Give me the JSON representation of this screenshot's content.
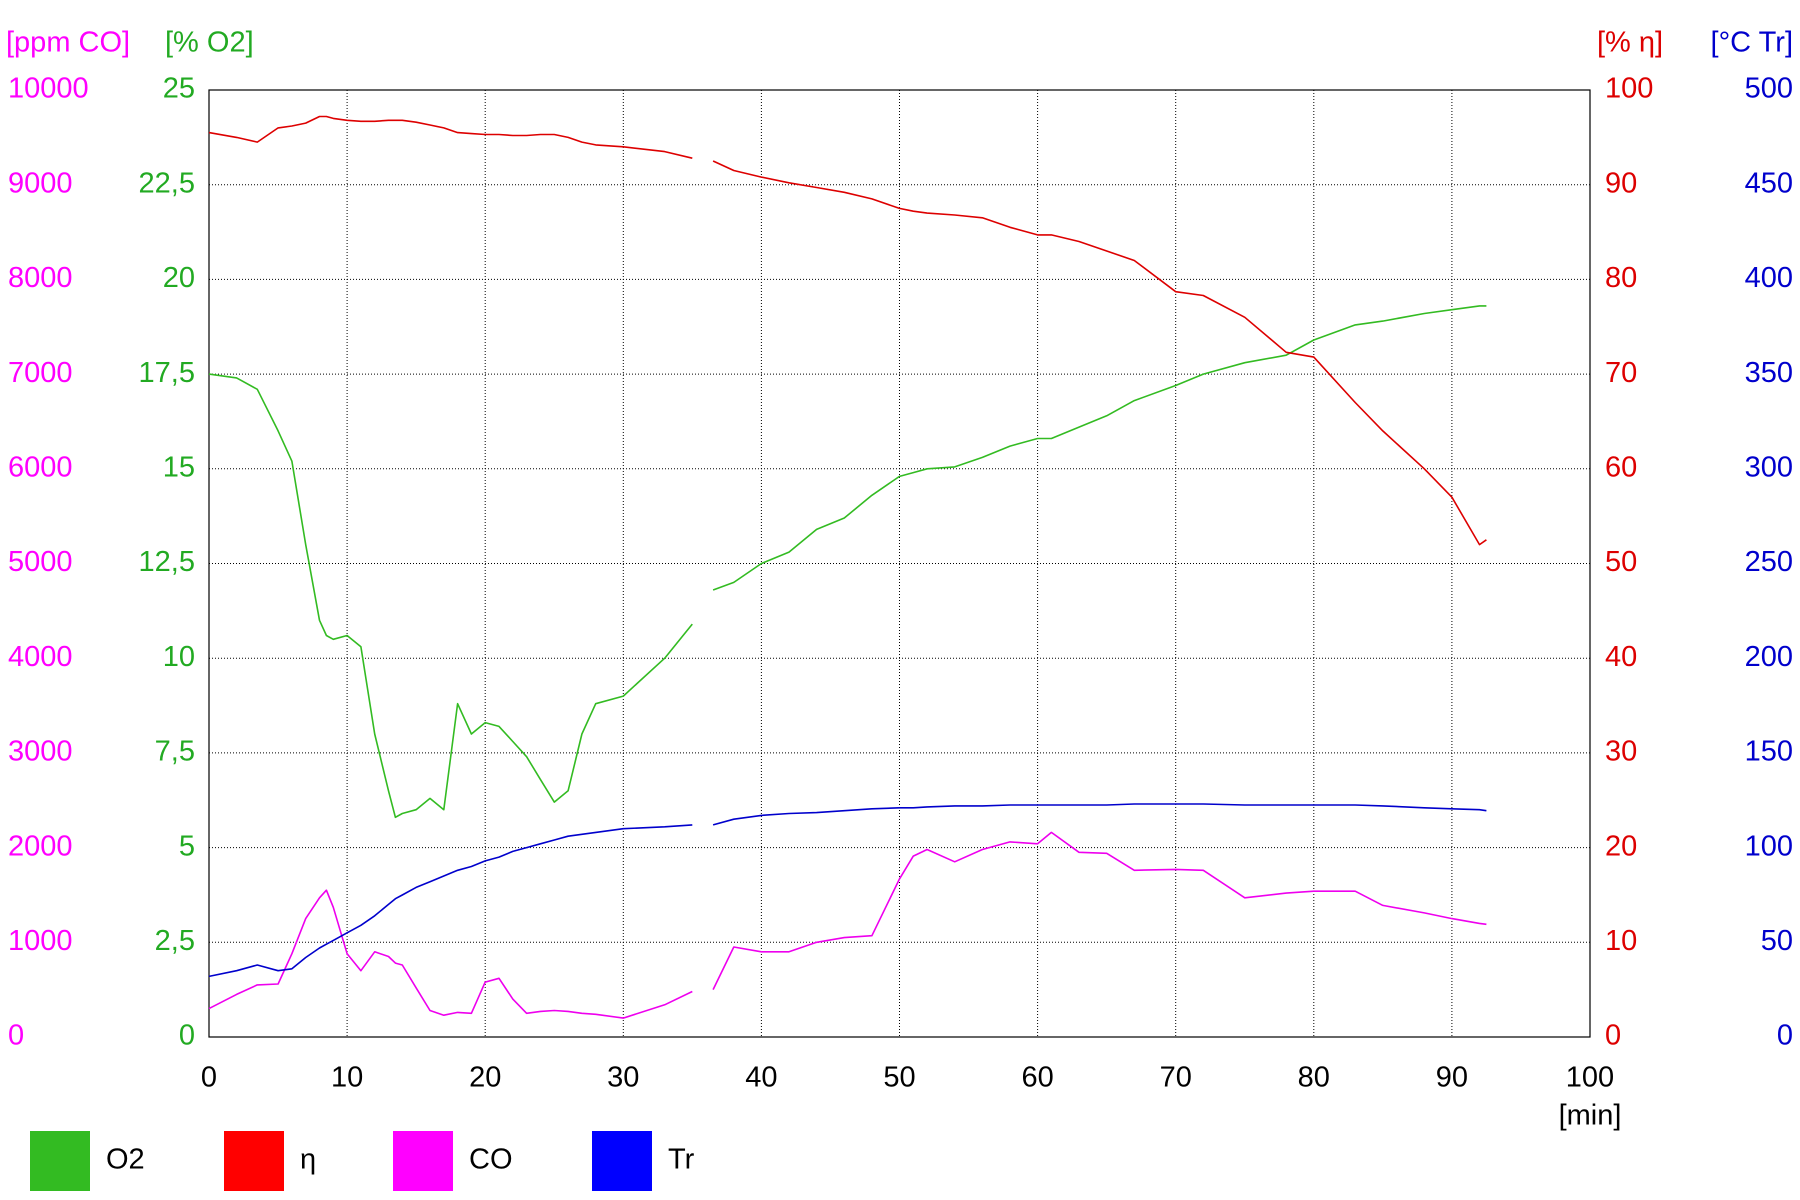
{
  "chart_data": {
    "type": "line",
    "x_label": "[min]",
    "xlim": [
      0,
      100
    ],
    "xticks": [
      0,
      10,
      20,
      30,
      40,
      50,
      60,
      70,
      80,
      90,
      100
    ],
    "grid": true,
    "y_axes": [
      {
        "label": "[ppm CO]",
        "color": "#ff00ff",
        "lim": [
          0,
          10000
        ],
        "ticks": [
          0,
          1000,
          2000,
          3000,
          4000,
          5000,
          6000,
          7000,
          8000,
          9000,
          10000
        ]
      },
      {
        "label": "[% O2]",
        "color": "#22aa22",
        "lim": [
          0,
          25
        ],
        "ticks": [
          0,
          {
            "value": 2.5,
            "label": "2,5"
          },
          5,
          {
            "value": 7.5,
            "label": "7,5"
          },
          10,
          {
            "value": 12.5,
            "label": "12,5"
          },
          15,
          {
            "value": 17.5,
            "label": "17,5"
          },
          20,
          {
            "value": 22.5,
            "label": "22,5"
          },
          25
        ]
      },
      {
        "label": "[% η]",
        "color": "#dd0000",
        "lim": [
          0,
          100
        ],
        "ticks": [
          0,
          10,
          20,
          30,
          40,
          50,
          60,
          70,
          80,
          90,
          100
        ]
      },
      {
        "label": "[°C Tr]",
        "color": "#0000cc",
        "lim": [
          0,
          500
        ],
        "ticks": [
          0,
          50,
          100,
          150,
          200,
          250,
          300,
          350,
          400,
          450,
          500
        ]
      }
    ],
    "x": [
      0,
      2,
      3.5,
      5,
      6,
      7,
      8,
      8.5,
      9,
      10,
      11,
      12,
      13,
      13.5,
      14,
      15,
      16,
      17,
      18,
      19,
      20,
      21,
      22,
      23,
      24,
      25,
      26,
      27,
      28,
      30,
      33,
      35,
      35.7,
      36.5,
      38,
      40,
      42,
      44,
      46,
      48,
      50,
      51,
      52,
      54,
      56,
      58,
      60,
      61,
      63,
      65,
      67,
      70,
      72,
      75,
      78,
      80,
      83,
      85,
      88,
      90,
      92,
      92.5
    ],
    "series": [
      {
        "name": "O2",
        "color": "#33bb22",
        "axis": 1,
        "values": [
          17.5,
          17.4,
          17.1,
          16,
          15.2,
          13,
          11,
          10.6,
          10.5,
          10.6,
          10.3,
          8,
          6.5,
          5.8,
          5.9,
          6,
          6.3,
          6,
          8.8,
          8,
          8.3,
          8.2,
          7.8,
          7.4,
          6.8,
          6.2,
          6.5,
          8,
          8.8,
          9,
          10,
          10.9,
          null,
          11.8,
          12,
          12.5,
          12.8,
          13.4,
          13.7,
          14.3,
          14.8,
          14.9,
          15,
          15.05,
          15.3,
          15.6,
          15.8,
          15.8,
          16.1,
          16.4,
          16.8,
          17.2,
          17.5,
          17.8,
          18,
          18.4,
          18.8,
          18.9,
          19.1,
          19.2,
          19.3,
          19.3
        ]
      },
      {
        "name": "η",
        "color": "#dd0000",
        "axis": 2,
        "values": [
          95.5,
          95,
          94.5,
          96,
          96.2,
          96.5,
          97.2,
          97.2,
          97,
          96.8,
          96.7,
          96.7,
          96.8,
          96.8,
          96.8,
          96.6,
          96.3,
          96,
          95.5,
          95.4,
          95.3,
          95.3,
          95.2,
          95.2,
          95.3,
          95.3,
          95,
          94.5,
          94.2,
          94,
          93.5,
          92.8,
          null,
          92.5,
          91.5,
          90.8,
          90.2,
          89.7,
          89.2,
          88.5,
          87.5,
          87.2,
          87,
          86.8,
          86.5,
          85.5,
          84.7,
          84.7,
          84,
          83,
          82,
          78.7,
          78.3,
          76,
          72.3,
          71.8,
          67,
          64,
          60,
          57,
          52,
          52.5
        ]
      },
      {
        "name": "CO",
        "color": "#ee00ee",
        "axis": 0,
        "values": [
          300,
          450,
          550,
          560,
          880,
          1250,
          1470,
          1550,
          1370,
          880,
          700,
          900,
          850,
          780,
          760,
          520,
          280,
          230,
          260,
          250,
          580,
          620,
          400,
          250,
          270,
          280,
          270,
          250,
          240,
          200,
          340,
          480,
          null,
          500,
          950,
          900,
          900,
          1000,
          1050,
          1070,
          1670,
          1910,
          1980,
          1850,
          1980,
          2060,
          2040,
          2160,
          1950,
          1940,
          1760,
          1770,
          1760,
          1470,
          1520,
          1540,
          1540,
          1390,
          1310,
          1250,
          1200,
          1190
        ]
      },
      {
        "name": "Tr",
        "color": "#0000cc",
        "axis": 3,
        "values": [
          32,
          35,
          38,
          35,
          36,
          42,
          47,
          49,
          51,
          55,
          59,
          64,
          70,
          73,
          75,
          79,
          82,
          85,
          88,
          90,
          93,
          95,
          98,
          100,
          102,
          104,
          106,
          107,
          108,
          110,
          111,
          112,
          null,
          112,
          115,
          117,
          118,
          118.5,
          119.5,
          120.5,
          121,
          121,
          121.5,
          122,
          122,
          122.5,
          122.5,
          122.5,
          122.5,
          122.5,
          123,
          123,
          123,
          122.5,
          122.5,
          122.5,
          122.5,
          122,
          121,
          120.5,
          120,
          119.5
        ]
      }
    ],
    "legend_colors": [
      "#33bb22",
      "#ff0000",
      "#ff00ff",
      "#0000ff"
    ]
  }
}
